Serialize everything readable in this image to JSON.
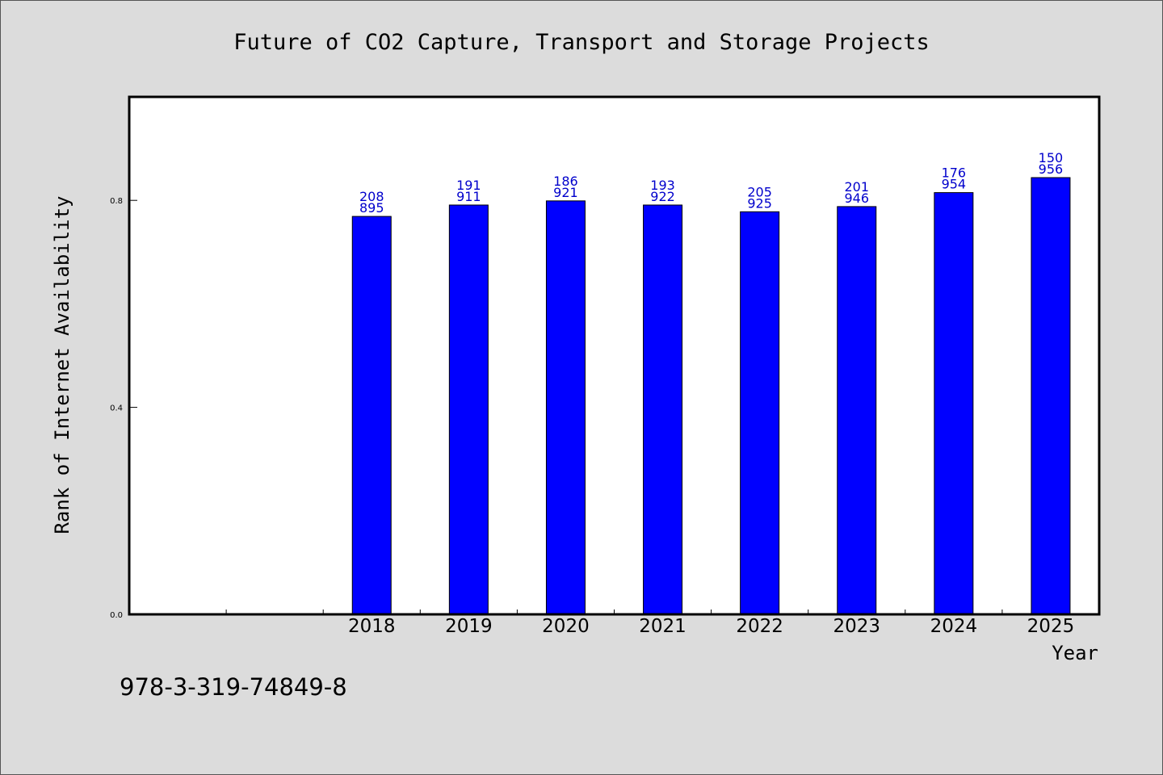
{
  "chart_data": {
    "type": "bar",
    "title": "Future of CO2 Capture, Transport and Storage Projects",
    "xlabel": "Year",
    "ylabel": "Rank of Internet Availability",
    "categories": [
      "",
      "",
      "2018",
      "2019",
      "2020",
      "2021",
      "2022",
      "2023",
      "2024",
      "2025"
    ],
    "values": [
      null,
      null,
      0.769,
      0.791,
      0.799,
      0.791,
      0.778,
      0.788,
      0.815,
      0.844
    ],
    "bar_labels": [
      [
        "",
        ""
      ],
      [
        "",
        ""
      ],
      [
        "208",
        "895"
      ],
      [
        "191",
        "911"
      ],
      [
        "186",
        "921"
      ],
      [
        "193",
        "922"
      ],
      [
        "205",
        "925"
      ],
      [
        "201",
        "946"
      ],
      [
        "176",
        "954"
      ],
      [
        "150",
        "956"
      ]
    ],
    "yticks": [
      "0.0",
      "0.4",
      "0.8"
    ],
    "ytick_values": [
      0.0,
      0.4,
      0.8
    ],
    "ylim": [
      0,
      1.0
    ],
    "grid": false,
    "colors": {
      "bar": "#0000ff",
      "label": "#0000cc",
      "axes": "#000000",
      "background": "#dcdcdc",
      "plot_background": "#ffffff"
    }
  },
  "footer": {
    "isbn": "978-3-319-74849-8"
  }
}
